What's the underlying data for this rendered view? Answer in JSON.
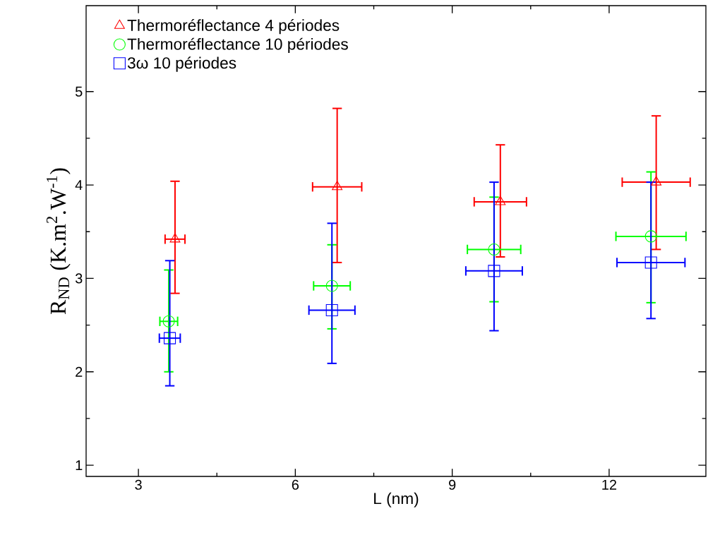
{
  "chart_data": {
    "type": "scatter",
    "xlabel": "L (nm)",
    "ylabel": "R$_{ND}$ (K.m$^{2}$.W$^{-1}$)",
    "xlim": [
      2,
      13.85
    ],
    "ylim": [
      0.88,
      5.92
    ],
    "xticks": [
      3,
      6,
      9,
      12
    ],
    "yticks": [
      1,
      2,
      3,
      4,
      5
    ],
    "legend": "top left",
    "grid": false,
    "series": [
      {
        "name": "Thermoréflectance 4 périodes",
        "color": "#ff0000",
        "marker": "triangle",
        "x": [
          3.7,
          6.8,
          9.92,
          12.9
        ],
        "values": [
          3.42,
          3.98,
          3.82,
          4.03
        ],
        "errors": [
          [
            2.84,
            4.04
          ],
          [
            3.17,
            4.82
          ],
          [
            3.23,
            4.43
          ],
          [
            3.31,
            4.74
          ]
        ],
        "xerrors": [
          0.19,
          0.47,
          0.5,
          0.65
        ]
      },
      {
        "name": "Thermoréflectance 10 périodes",
        "color": "#00ff00",
        "marker": "circle",
        "x": [
          3.58,
          6.7,
          9.8,
          12.8
        ],
        "values": [
          2.54,
          2.92,
          3.31,
          3.45
        ],
        "errors": [
          [
            2.0,
            3.09
          ],
          [
            2.46,
            3.36
          ],
          [
            2.75,
            3.87
          ],
          [
            2.74,
            4.14
          ]
        ],
        "xerrors": [
          0.17,
          0.35,
          0.51,
          0.67
        ]
      },
      {
        "name": "3ω 10 périodes",
        "color": "#0000ff",
        "marker": "square",
        "x": [
          3.6,
          6.7,
          9.8,
          12.8
        ],
        "values": [
          2.36,
          2.66,
          3.08,
          3.17
        ],
        "errors": [
          [
            1.85,
            3.19
          ],
          [
            2.09,
            3.59
          ],
          [
            2.44,
            4.03
          ],
          [
            2.57,
            4.03
          ]
        ],
        "xerrors": [
          0.2,
          0.44,
          0.54,
          0.65
        ]
      }
    ]
  }
}
